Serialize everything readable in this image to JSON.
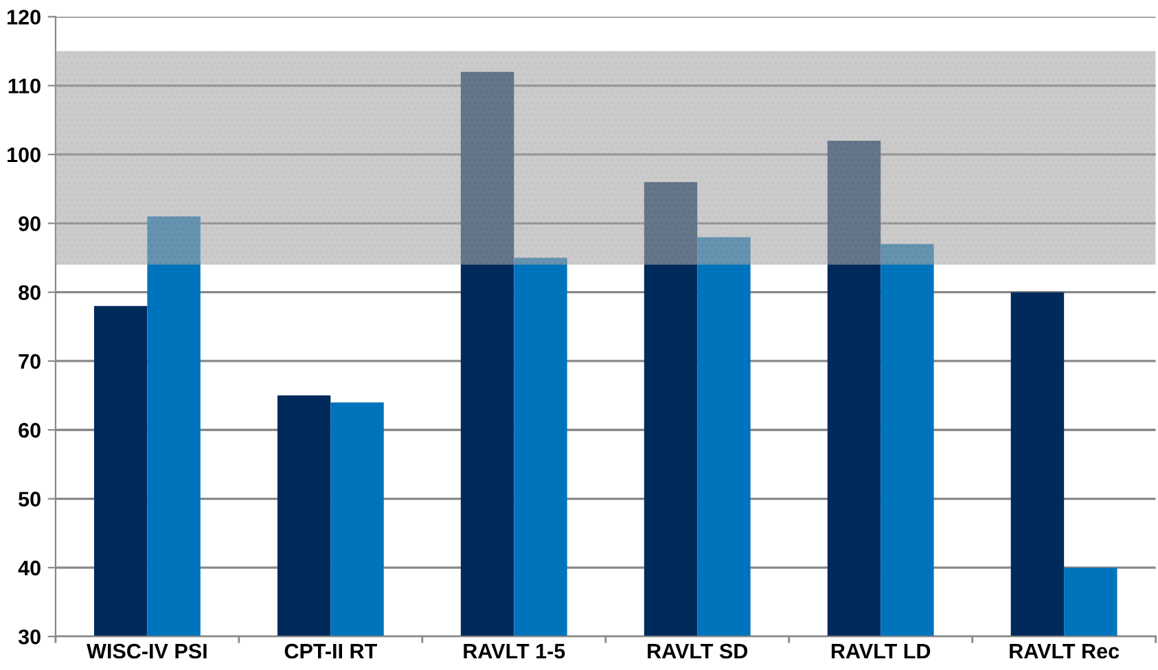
{
  "chart_data": {
    "type": "bar",
    "categories": [
      "WISC-IV PSI",
      "CPT-II RT",
      "RAVLT 1-5",
      "RAVLT SD",
      "RAVLT LD",
      "RAVLT Rec"
    ],
    "series": [
      {
        "color": "#002a5c",
        "values": [
          78,
          65,
          112,
          96,
          102,
          80
        ]
      },
      {
        "color": "#0073bd",
        "values": [
          91,
          64,
          85,
          88,
          87,
          40
        ]
      }
    ],
    "ylim": [
      30,
      120
    ],
    "yticks": [
      30,
      40,
      50,
      60,
      70,
      80,
      90,
      100,
      110,
      120
    ],
    "grid": "y",
    "bands": [
      {
        "axis": "y",
        "from": 84,
        "to": 115,
        "color": "#a8a8a8"
      }
    ]
  }
}
